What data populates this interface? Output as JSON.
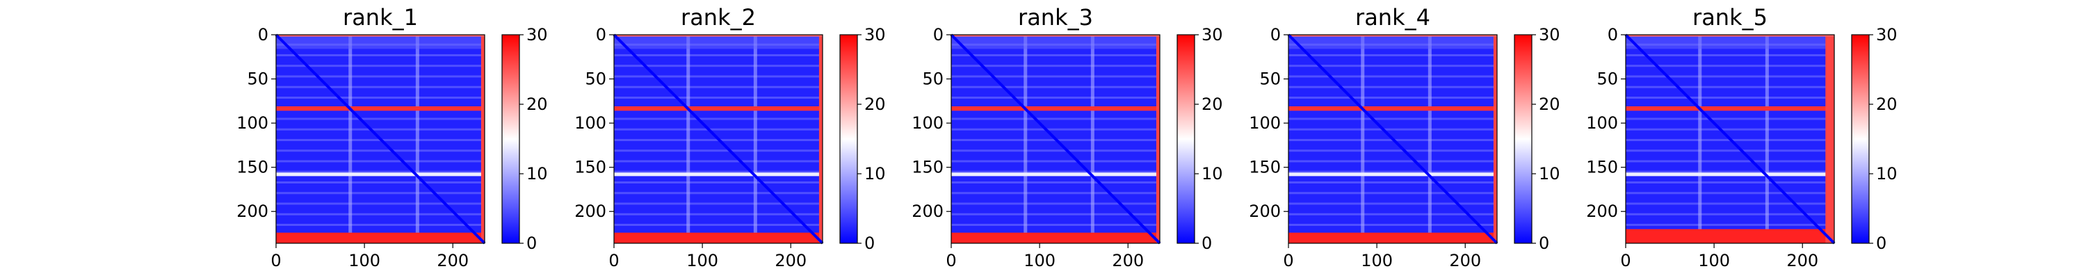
{
  "chart_data": {
    "type": "heatmap",
    "description_units": "predicted aligned error",
    "colormap": {
      "low": "#0000ff",
      "mid": "#ffffff",
      "high": "#ff0000"
    },
    "color_range": [
      0,
      30
    ],
    "colorbar_ticks": [
      0,
      10,
      20,
      30
    ],
    "axis_range": [
      0,
      236
    ],
    "y_ticks": [
      0,
      50,
      100,
      150,
      200
    ],
    "x_ticks": [
      0,
      100,
      200
    ],
    "panels": [
      {
        "title": "rank_1",
        "low_conf_rows": [
          81,
          86,
          156,
          160,
          224,
          236
        ],
        "end_band": 4
      },
      {
        "title": "rank_2",
        "low_conf_rows": [
          81,
          86,
          156,
          160,
          224,
          236
        ],
        "end_band": 4
      },
      {
        "title": "rank_3",
        "low_conf_rows": [
          81,
          86,
          156,
          160,
          224,
          236
        ],
        "end_band": 4
      },
      {
        "title": "rank_4",
        "low_conf_rows": [
          81,
          86,
          156,
          160,
          224,
          236
        ],
        "end_band": 4
      },
      {
        "title": "rank_5",
        "low_conf_rows": [
          81,
          86,
          156,
          160,
          220,
          236
        ],
        "end_band": 10
      }
    ]
  }
}
